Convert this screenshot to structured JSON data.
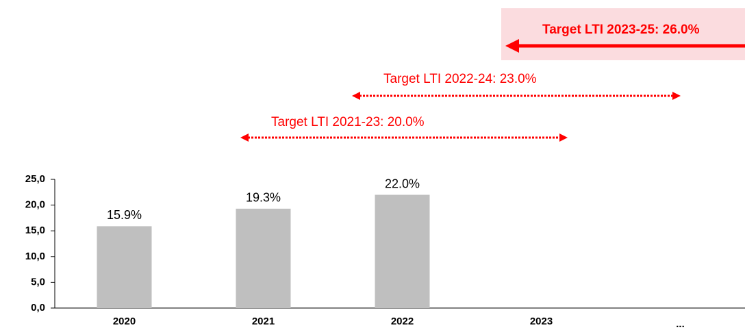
{
  "chart_data": {
    "type": "bar",
    "annotations": [
      "Target LTI 2023-25: 26.0%",
      "Target LTI 2022-24: 23.0%",
      "Target LTI 2021-23: 20.0%"
    ],
    "categories": [
      "2020",
      "2021",
      "2022",
      "2023",
      "..."
    ],
    "values": [
      15.9,
      19.3,
      22.0,
      null,
      null
    ],
    "value_labels": [
      "15.9%",
      "19.3%",
      "22.0%",
      null,
      null
    ],
    "color": "#bfbfbf",
    "ylim": [
      0,
      25
    ],
    "yticks": [
      {
        "value": 0,
        "label": "0,0"
      },
      {
        "value": 5,
        "label": "5,0"
      },
      {
        "value": 10,
        "label": "10,0"
      },
      {
        "value": 15,
        "label": "15,0"
      },
      {
        "value": 20,
        "label": "20,0"
      },
      {
        "value": 25,
        "label": "25,0"
      }
    ]
  }
}
